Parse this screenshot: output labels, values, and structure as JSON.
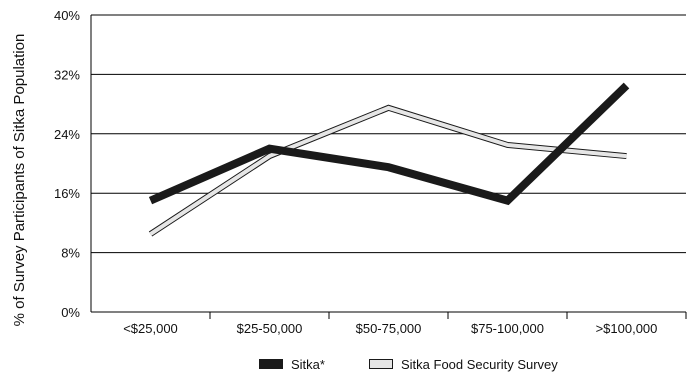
{
  "chart_data": {
    "type": "line",
    "title": "",
    "xlabel": "",
    "ylabel": "% of Survey Participants of Sitka Population",
    "categories": [
      "<$25,000",
      "$25-50,000",
      "$50-75,000",
      "$75-100,000",
      ">$100,000"
    ],
    "ylim": [
      0,
      40
    ],
    "y_ticks": [
      "0%",
      "8%",
      "16%",
      "24%",
      "32%",
      "40%"
    ],
    "grid": true,
    "legend_position": "bottom",
    "series": [
      {
        "name": "Sitka*",
        "values": [
          15,
          22,
          19.5,
          15,
          30.5
        ],
        "color": "#1a1a1a",
        "style": "thick-dark"
      },
      {
        "name": "Sitka Food Security Survey",
        "values": [
          10.5,
          21,
          27.5,
          22.5,
          21
        ],
        "color": "#e6e6e6",
        "style": "outlined-light"
      }
    ]
  }
}
